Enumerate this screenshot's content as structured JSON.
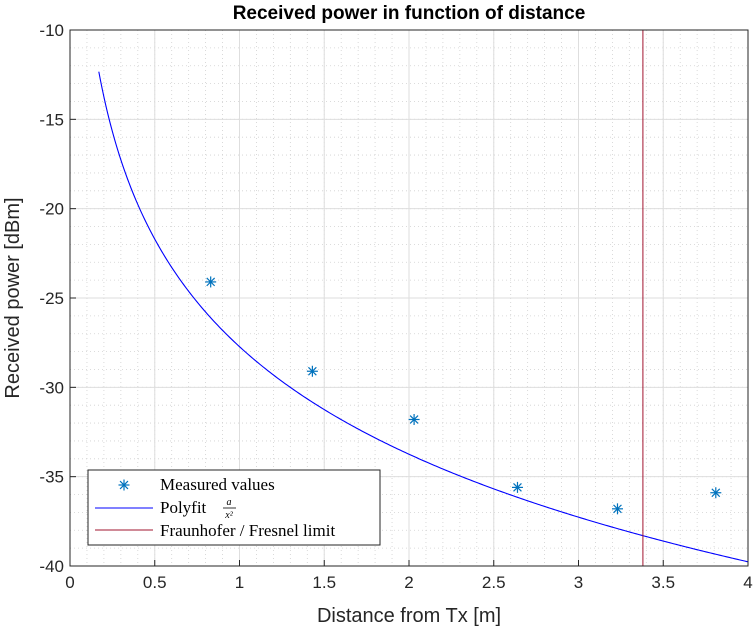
{
  "chart_data": {
    "type": "line",
    "title": "Received power in function of distance",
    "xlabel": "Distance from Tx [m]",
    "ylabel": "Received power [dBm]",
    "xlim": [
      0,
      4
    ],
    "ylim": [
      -40,
      -10
    ],
    "xticks": [
      0,
      0.5,
      1,
      1.5,
      2,
      2.5,
      3,
      3.5,
      4
    ],
    "xtick_labels": [
      "0",
      "0.5",
      "1",
      "1.5",
      "2",
      "2.5",
      "3",
      "3.5",
      "4"
    ],
    "yticks": [
      -40,
      -35,
      -30,
      -25,
      -20,
      -15,
      -10
    ],
    "ytick_labels": [
      "-40",
      "-35",
      "-30",
      "-25",
      "-20",
      "-15",
      "-10"
    ],
    "grid": true,
    "minor_grid": true,
    "legend_position": "bottom-left",
    "series": [
      {
        "name": "Measured values",
        "kind": "scatter",
        "marker": "asterisk",
        "color": "#0072BD",
        "x": [
          0.83,
          1.43,
          2.03,
          2.64,
          3.23,
          3.81
        ],
        "y": [
          -24.1,
          -29.1,
          -31.8,
          -35.6,
          -36.8,
          -35.9
        ]
      },
      {
        "name": "Polyfit",
        "name_math_num": "a",
        "name_math_den": "x²",
        "kind": "line",
        "color": "#0000FF",
        "model": "P_dBm = -26.0 - 20*log10(x / 0.82)",
        "x_start": 0.17,
        "x_end": 4.0
      },
      {
        "name": "Fraunhofer / Fresnel limit",
        "kind": "vline",
        "color": "#A2142F",
        "x": 3.38
      }
    ]
  }
}
